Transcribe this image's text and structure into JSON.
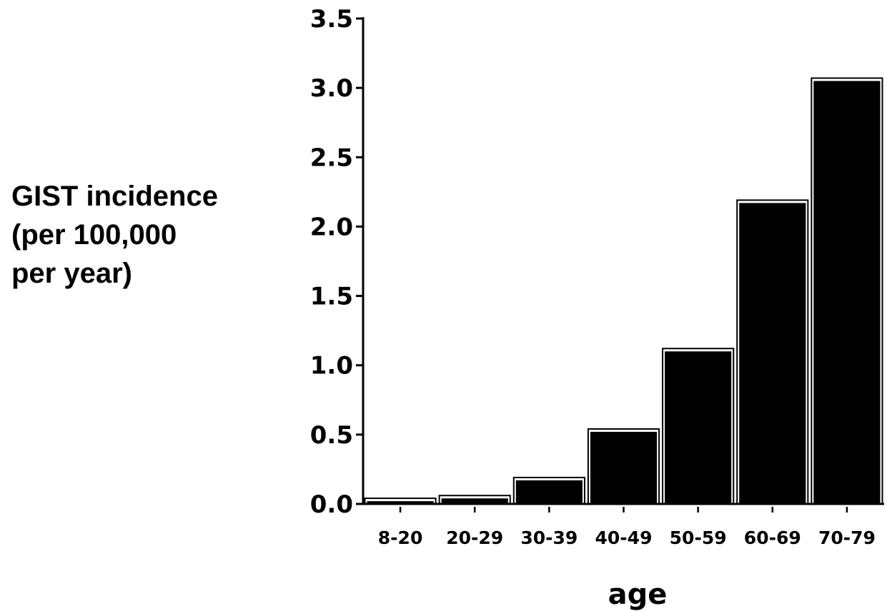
{
  "chart_data": {
    "type": "bar",
    "ylabel_lines": [
      "GIST incidence",
      "(per 100,000",
      "per year)"
    ],
    "xlabel": "age",
    "categories": [
      "8-20",
      "20-29",
      "30-39",
      "40-49",
      "50-59",
      "60-69",
      "70-79"
    ],
    "values": [
      0.02,
      0.04,
      0.17,
      0.52,
      1.1,
      2.17,
      3.05
    ],
    "ylim": [
      0,
      3.5
    ],
    "yticks": [
      "0.0",
      "0.5",
      "1.0",
      "1.5",
      "2.0",
      "2.5",
      "3.0",
      "3.5"
    ],
    "grid": false,
    "legend": "none",
    "colors": {
      "bar_fill": "#000000",
      "bar_outline": "#000000",
      "axis": "#000000",
      "background": "#ffffff"
    }
  }
}
